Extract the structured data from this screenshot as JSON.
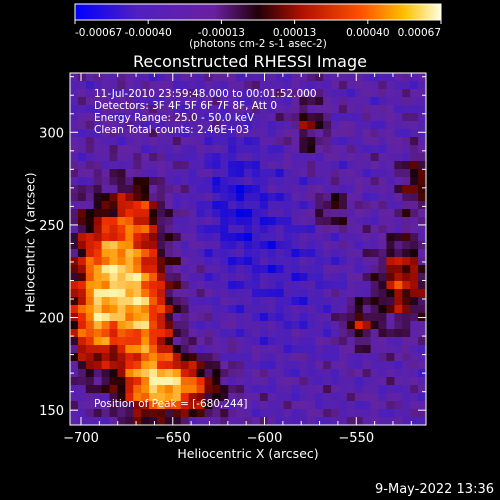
{
  "chart_data": {
    "type": "heatmap",
    "title": "Reconstructed RHESSI Image",
    "xlabel": "Heliocentric X (arcsec)",
    "ylabel": "Heliocentric Y (arcsec)",
    "xlim": [
      -706,
      -512
    ],
    "ylim": [
      142,
      332
    ],
    "xticks": [
      -700,
      -650,
      -600,
      -550
    ],
    "yticks": [
      150,
      200,
      250,
      300
    ],
    "colorbar": {
      "ticks": [
        "-0.00067",
        "-0.00040",
        "-0.00013",
        "0.00013",
        "0.00040",
        "0.00067"
      ],
      "range": [
        -0.00067,
        0.00067
      ],
      "units": "(photons cm-2 s-1 asec-2)",
      "colors": [
        "#0000ff",
        "#5020c0",
        "#7020a0",
        "#a01010",
        "#ff3000",
        "#ffa000",
        "#ffffa0"
      ]
    },
    "peak": {
      "x": -680,
      "y": 244
    },
    "grid": false
  },
  "info": {
    "time_range": "11-Jul-2010 23:59:48.000 to 00:01:52.000",
    "detectors": "Detectors: 3F 4F 5F 6F 7F 8F, Att 0",
    "energy": "Energy Range: 25.0 - 50.0 keV",
    "method": "Clean      Total counts: 2.46E+03",
    "peak_text": "Position of Peak = [-680,244]"
  },
  "footer": {
    "date": "9-May-2022 13:36"
  }
}
